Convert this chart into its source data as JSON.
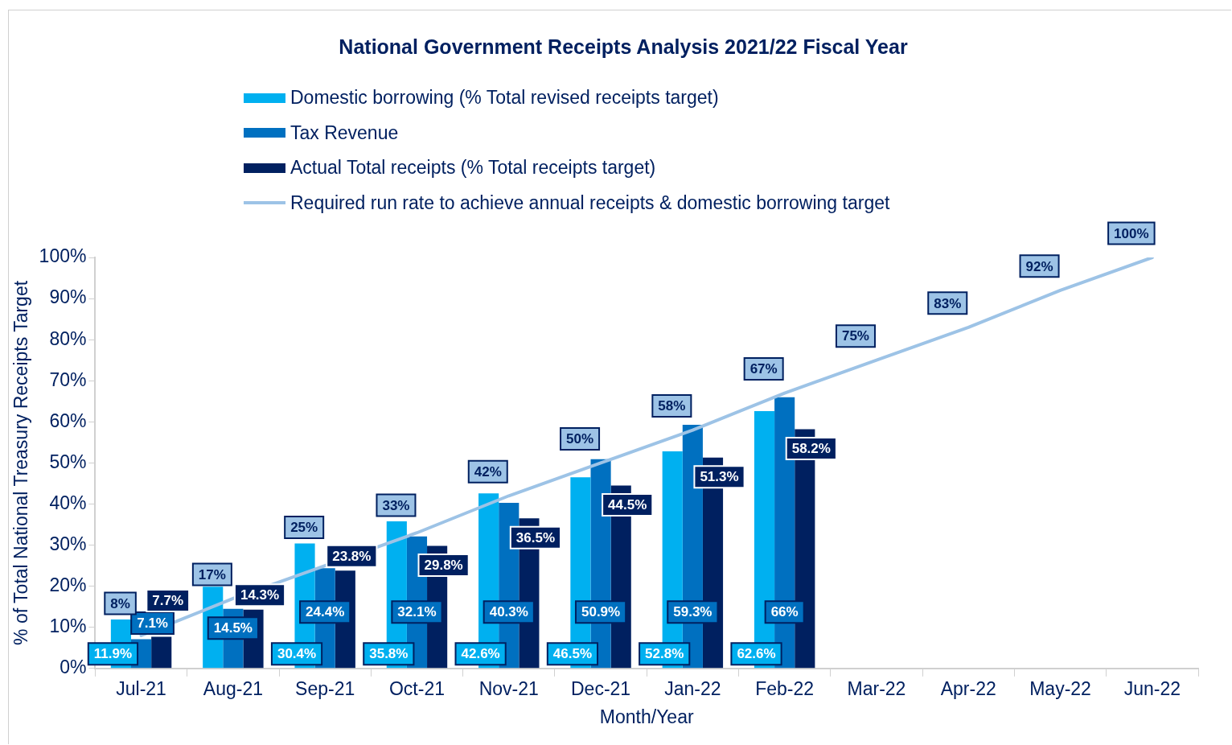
{
  "chart_data": {
    "type": "bar",
    "title": "National Government Receipts Analysis 2021/22 Fiscal Year",
    "xlabel": "Month/Year",
    "ylabel": "% of Total National Treasury Receipts Target",
    "categories": [
      "Jul-21",
      "Aug-21",
      "Sep-21",
      "Oct-21",
      "Nov-21",
      "Dec-21",
      "Jan-22",
      "Feb-22",
      "Mar-22",
      "Apr-22",
      "May-22",
      "Jun-22"
    ],
    "series": [
      {
        "name": "Domestic borrowing (% Total revised receipts target)",
        "color": "#00b0f0",
        "values": [
          11.9,
          19.9,
          30.4,
          35.8,
          42.6,
          46.5,
          52.8,
          62.6,
          null,
          null,
          null,
          null
        ],
        "value_labels": [
          "11.9%",
          null,
          "30.4%",
          "35.8%",
          "42.6%",
          "46.5%",
          "52.8%",
          "62.6%",
          null,
          null,
          null,
          null
        ]
      },
      {
        "name": "Tax Revenue",
        "color": "#0070c0",
        "values": [
          7.1,
          14.5,
          24.4,
          32.1,
          40.3,
          50.9,
          59.3,
          66,
          null,
          null,
          null,
          null
        ],
        "value_labels": [
          "7.1%",
          "14.5%",
          "24.4%",
          "32.1%",
          "40.3%",
          "50.9%",
          "59.3%",
          "66%",
          null,
          null,
          null,
          null
        ]
      },
      {
        "name": "Actual Total receipts (% Total receipts target)",
        "color": "#002060",
        "values": [
          7.7,
          14.3,
          23.8,
          29.8,
          36.5,
          44.5,
          51.3,
          58.2,
          null,
          null,
          null,
          null
        ],
        "value_labels": [
          "7.7%",
          "14.3%",
          "23.8%",
          "29.8%",
          "36.5%",
          "44.5%",
          "51.3%",
          "58.2%",
          null,
          null,
          null,
          null
        ]
      },
      {
        "name": "Required run rate to achieve annual receipts & domestic borrowing target",
        "type": "line",
        "color": "#9dc3e6",
        "values": [
          8,
          17,
          25,
          33,
          42,
          50,
          58,
          67,
          75,
          83,
          92,
          100
        ],
        "value_labels": [
          "8%",
          "17%",
          "25%",
          "33%",
          "42%",
          "50%",
          "58%",
          "67%",
          "75%",
          "83%",
          "92%",
          "100%"
        ]
      }
    ],
    "ylim": [
      0,
      100
    ],
    "yticks": [
      {
        "value": 0,
        "label": "0%"
      },
      {
        "value": 10,
        "label": "10%"
      },
      {
        "value": 20,
        "label": "20%"
      },
      {
        "value": 30,
        "label": "30%"
      },
      {
        "value": 40,
        "label": "40%"
      },
      {
        "value": 50,
        "label": "50%"
      },
      {
        "value": 60,
        "label": "60%"
      },
      {
        "value": 70,
        "label": "70%"
      },
      {
        "value": 80,
        "label": "80%"
      },
      {
        "value": 90,
        "label": "90%"
      },
      {
        "value": 100,
        "label": "100%"
      }
    ],
    "grid": false,
    "legend": "top",
    "marker": "none",
    "line_style": "solid"
  }
}
